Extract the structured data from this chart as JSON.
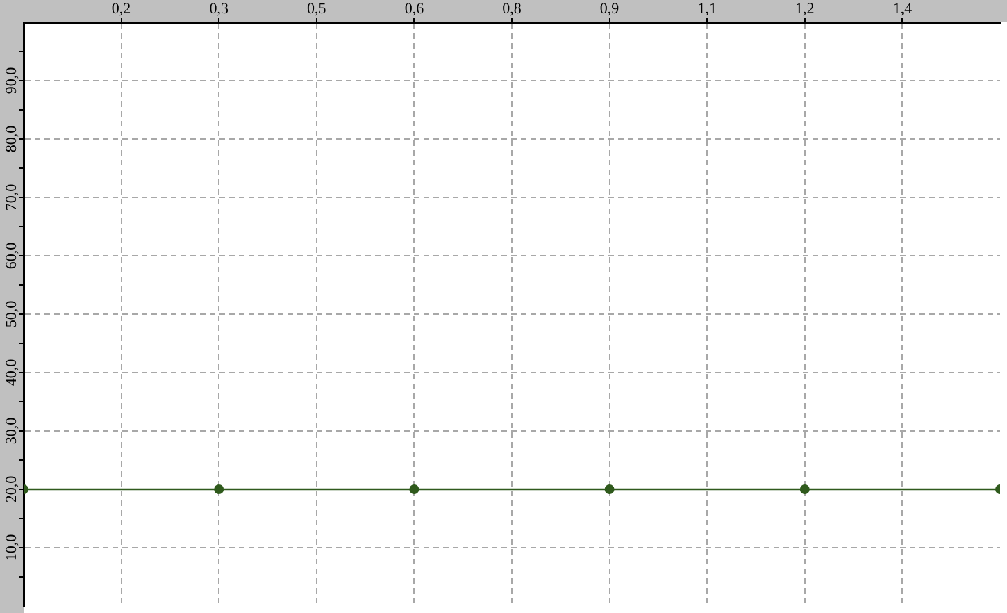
{
  "chart_data": {
    "type": "line",
    "x": [
      0,
      0.3,
      0.6,
      0.9,
      1.2,
      1.5
    ],
    "series": [
      {
        "color": "#2f5a1c",
        "values": [
          20,
          20,
          20,
          20,
          20,
          20
        ]
      }
    ],
    "xlim": [
      0,
      1.5
    ],
    "ylim": [
      0,
      100
    ],
    "xticks": [
      {
        "value": 0.15,
        "label": "0,2"
      },
      {
        "value": 0.3,
        "label": "0,3"
      },
      {
        "value": 0.45,
        "label": "0,5"
      },
      {
        "value": 0.6,
        "label": "0,6"
      },
      {
        "value": 0.75,
        "label": "0,8"
      },
      {
        "value": 0.9,
        "label": "0,9"
      },
      {
        "value": 1.05,
        "label": "1,1"
      },
      {
        "value": 1.2,
        "label": "1,2"
      },
      {
        "value": 1.35,
        "label": "1,4"
      }
    ],
    "yticks": [
      {
        "value": 5,
        "label": null
      },
      {
        "value": 10,
        "label": "10,0"
      },
      {
        "value": 15,
        "label": null
      },
      {
        "value": 20,
        "label": "20,0"
      },
      {
        "value": 25,
        "label": null
      },
      {
        "value": 30,
        "label": "30,0"
      },
      {
        "value": 35,
        "label": null
      },
      {
        "value": 40,
        "label": "40,0"
      },
      {
        "value": 45,
        "label": null
      },
      {
        "value": 50,
        "label": "50,0"
      },
      {
        "value": 55,
        "label": null
      },
      {
        "value": 60,
        "label": "60,0"
      },
      {
        "value": 65,
        "label": null
      },
      {
        "value": 70,
        "label": "70,0"
      },
      {
        "value": 75,
        "label": null
      },
      {
        "value": 80,
        "label": "80,0"
      },
      {
        "value": 85,
        "label": null
      },
      {
        "value": 90,
        "label": "90,0"
      },
      {
        "value": 95,
        "label": null
      }
    ],
    "grid": true,
    "legend": false,
    "marker": "circle",
    "line_style": "solid"
  }
}
